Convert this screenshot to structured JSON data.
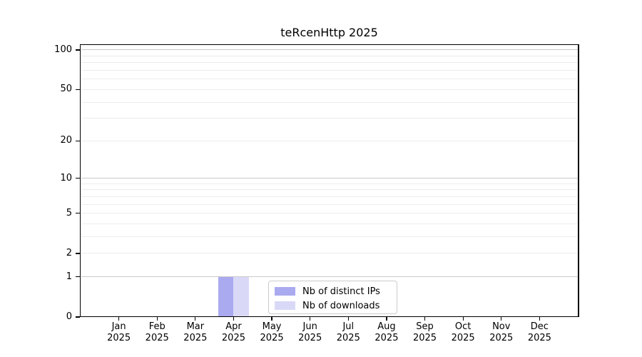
{
  "chart_data": {
    "type": "bar",
    "title": "teRcenHttp 2025",
    "x_categories": [
      "Jan",
      "Feb",
      "Mar",
      "Apr",
      "May",
      "Jun",
      "Jul",
      "Aug",
      "Sep",
      "Oct",
      "Nov",
      "Dec"
    ],
    "x_year": "2025",
    "series": [
      {
        "name": "Nb of distinct IPs",
        "color": "#aaaaf0",
        "values": [
          0,
          0,
          0,
          1,
          0,
          0,
          0,
          0,
          0,
          0,
          0,
          0
        ]
      },
      {
        "name": "Nb of downloads",
        "color": "#d9d9f7",
        "values": [
          0,
          0,
          0,
          1,
          0,
          0,
          0,
          0,
          0,
          0,
          0,
          0
        ]
      }
    ],
    "y_axis": {
      "scale": "log10(1+x)",
      "tick_values": [
        0,
        1,
        2,
        5,
        10,
        20,
        50,
        100
      ],
      "tick_labels": [
        "0",
        "1",
        "2",
        "5",
        "10",
        "20",
        "50",
        "100"
      ],
      "major_gridlines": [
        1,
        10,
        100
      ],
      "minor_gridlines": [
        2,
        3,
        4,
        5,
        6,
        7,
        8,
        9,
        20,
        30,
        40,
        50,
        60,
        70,
        80,
        90
      ],
      "ymin": 0,
      "ymax": 110
    },
    "legend": {
      "position": "lower center",
      "entries": [
        "Nb of distinct IPs",
        "Nb of downloads"
      ]
    },
    "grid": "horizontal"
  }
}
